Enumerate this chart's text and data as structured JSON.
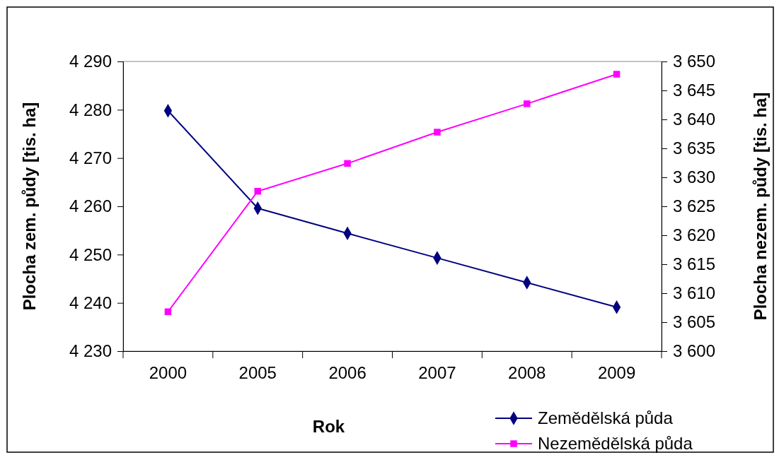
{
  "chart_data": {
    "type": "line",
    "xlabel": "Rok",
    "ylabel": "Plocha zem. půdy [tis. ha]",
    "y2label": "Plocha nezem. půdy [tis. ha]",
    "categories": [
      "2000",
      "2005",
      "2006",
      "2007",
      "2008",
      "2009"
    ],
    "ylim": [
      4230,
      4290
    ],
    "yticks": [
      {
        "value": 4230,
        "label": "4 230"
      },
      {
        "value": 4240,
        "label": "4 240"
      },
      {
        "value": 4250,
        "label": "4 250"
      },
      {
        "value": 4260,
        "label": "4 260"
      },
      {
        "value": 4270,
        "label": "4 270"
      },
      {
        "value": 4280,
        "label": "4 280"
      },
      {
        "value": 4290,
        "label": "4 290"
      }
    ],
    "y2lim": [
      3600,
      3650
    ],
    "y2ticks": [
      {
        "value": 3600,
        "label": "3 600"
      },
      {
        "value": 3605,
        "label": "3 605"
      },
      {
        "value": 3610,
        "label": "3 610"
      },
      {
        "value": 3615,
        "label": "3 615"
      },
      {
        "value": 3620,
        "label": "3 620"
      },
      {
        "value": 3625,
        "label": "3 625"
      },
      {
        "value": 3630,
        "label": "3 630"
      },
      {
        "value": 3635,
        "label": "3 635"
      },
      {
        "value": 3640,
        "label": "3 640"
      },
      {
        "value": 3645,
        "label": "3 645"
      },
      {
        "value": 3650,
        "label": "3 650"
      }
    ],
    "series": [
      {
        "name": "Zemědělská půda",
        "color": "#000080",
        "marker": "diamond",
        "values": [
          4279.8,
          4259.6,
          4254.4,
          4249.3,
          4244.2,
          4239.1
        ]
      },
      {
        "name": "Nezemědělská půda",
        "color": "#ff00ff",
        "marker": "square",
        "axis": "y2",
        "values": [
          3606.8,
          3627.6,
          3632.4,
          3637.8,
          3642.7,
          3647.8
        ]
      }
    ],
    "grid": false,
    "legend": "bottom right",
    "line_style": "solid"
  }
}
